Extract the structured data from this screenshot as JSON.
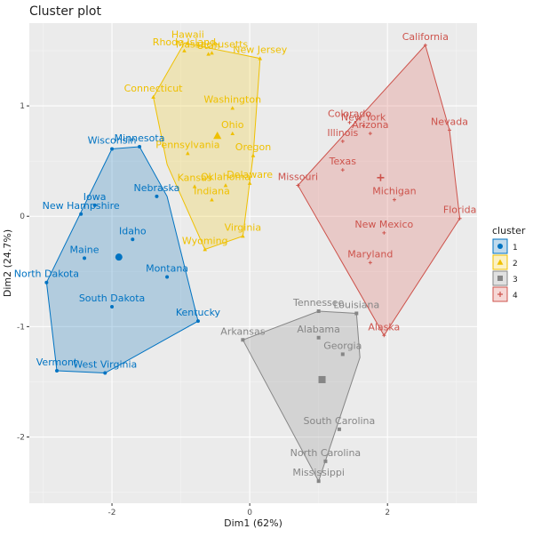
{
  "chart_data": {
    "type": "scatter",
    "title": "Cluster plot",
    "xlabel": "Dim1 (62%)",
    "ylabel": "Dim2 (24.7%)",
    "xlim": [
      -3.2,
      3.3
    ],
    "ylim": [
      -2.6,
      1.75
    ],
    "x_ticks": [
      {
        "value": -2,
        "label": "-2"
      },
      {
        "value": 0,
        "label": "0"
      },
      {
        "value": 2,
        "label": "2"
      }
    ],
    "y_ticks": [
      {
        "value": -2,
        "label": "-2"
      },
      {
        "value": -1,
        "label": "-1"
      },
      {
        "value": 0,
        "label": "0"
      },
      {
        "value": 1,
        "label": "1"
      }
    ],
    "grid": true,
    "legend": {
      "title": "cluster",
      "position": "right"
    },
    "clusters": [
      {
        "name": "1",
        "color": "#0073C2",
        "fill": "#2E86C1",
        "shape": "circle",
        "center": [
          -1.9,
          -0.37
        ],
        "hull": [
          [
            -2.0,
            0.61
          ],
          [
            -1.6,
            0.63
          ],
          [
            -1.2,
            0.18
          ],
          [
            -0.75,
            -0.95
          ],
          [
            -2.1,
            -1.42
          ],
          [
            -2.8,
            -1.4
          ],
          [
            -2.95,
            -0.6
          ]
        ],
        "points": [
          {
            "label": "Minnesota",
            "x": -1.6,
            "y": 0.63
          },
          {
            "label": "Wisconsin",
            "x": -2.0,
            "y": 0.61
          },
          {
            "label": "Iowa",
            "x": -2.25,
            "y": 0.1
          },
          {
            "label": "New Hampshire",
            "x": -2.45,
            "y": 0.02
          },
          {
            "label": "Nebraska",
            "x": -1.35,
            "y": 0.18
          },
          {
            "label": "Idaho",
            "x": -1.7,
            "y": -0.21
          },
          {
            "label": "Maine",
            "x": -2.4,
            "y": -0.38
          },
          {
            "label": "North Dakota",
            "x": -2.95,
            "y": -0.6
          },
          {
            "label": "Montana",
            "x": -1.2,
            "y": -0.55
          },
          {
            "label": "South Dakota",
            "x": -2.0,
            "y": -0.82
          },
          {
            "label": "Kentucky",
            "x": -0.75,
            "y": -0.95
          },
          {
            "label": "Vermont",
            "x": -2.8,
            "y": -1.4
          },
          {
            "label": "West Virginia",
            "x": -2.1,
            "y": -1.42
          }
        ]
      },
      {
        "name": "2",
        "color": "#EFC000",
        "fill": "#F2D13A",
        "shape": "triangle",
        "center": [
          -0.47,
          0.73
        ],
        "hull": [
          [
            -1.4,
            1.08
          ],
          [
            -0.95,
            1.57
          ],
          [
            0.15,
            1.43
          ],
          [
            0.05,
            0.55
          ],
          [
            -0.1,
            -0.18
          ],
          [
            -0.65,
            -0.3
          ],
          [
            -1.2,
            0.47
          ]
        ],
        "points": [
          {
            "label": "Hawaii",
            "x": -0.9,
            "y": 1.57
          },
          {
            "label": "Rhode Island",
            "x": -0.95,
            "y": 1.5
          },
          {
            "label": "Massachusetts",
            "x": -0.55,
            "y": 1.48
          },
          {
            "label": "Utah",
            "x": -0.6,
            "y": 1.47
          },
          {
            "label": "New Jersey",
            "x": 0.15,
            "y": 1.43
          },
          {
            "label": "Connecticut",
            "x": -1.4,
            "y": 1.08
          },
          {
            "label": "Washington",
            "x": -0.25,
            "y": 0.98
          },
          {
            "label": "Ohio",
            "x": -0.25,
            "y": 0.75
          },
          {
            "label": "Oregon",
            "x": 0.05,
            "y": 0.55
          },
          {
            "label": "Pennsylvania",
            "x": -0.9,
            "y": 0.57
          },
          {
            "label": "Delaware",
            "x": 0.0,
            "y": 0.3
          },
          {
            "label": "Kansas",
            "x": -0.8,
            "y": 0.27
          },
          {
            "label": "Oklahoma",
            "x": -0.35,
            "y": 0.28
          },
          {
            "label": "Indiana",
            "x": -0.55,
            "y": 0.15
          },
          {
            "label": "Virginia",
            "x": -0.1,
            "y": -0.18
          },
          {
            "label": "Wyoming",
            "x": -0.65,
            "y": -0.3
          }
        ]
      },
      {
        "name": "3",
        "color": "#868686",
        "fill": "#9A9A9A",
        "shape": "square",
        "center": [
          1.05,
          -1.48
        ],
        "hull": [
          [
            -0.1,
            -1.12
          ],
          [
            1.0,
            -0.86
          ],
          [
            1.55,
            -0.88
          ],
          [
            1.6,
            -1.28
          ],
          [
            1.0,
            -2.4
          ]
        ],
        "points": [
          {
            "label": "Tennessee",
            "x": 1.0,
            "y": -0.86
          },
          {
            "label": "Louisiana",
            "x": 1.55,
            "y": -0.88
          },
          {
            "label": "Arkansas",
            "x": -0.1,
            "y": -1.12
          },
          {
            "label": "Alabama",
            "x": 1.0,
            "y": -1.1
          },
          {
            "label": "Georgia",
            "x": 1.35,
            "y": -1.25
          },
          {
            "label": "South Carolina",
            "x": 1.3,
            "y": -1.93
          },
          {
            "label": "North Carolina",
            "x": 1.1,
            "y": -2.22
          },
          {
            "label": "Mississippi",
            "x": 1.0,
            "y": -2.4
          }
        ]
      },
      {
        "name": "4",
        "color": "#CD534C",
        "fill": "#E07A74",
        "shape": "cross",
        "center": [
          1.9,
          0.35
        ],
        "hull": [
          [
            0.7,
            0.28
          ],
          [
            2.55,
            1.55
          ],
          [
            2.9,
            0.78
          ],
          [
            3.05,
            -0.02
          ],
          [
            1.95,
            -1.08
          ]
        ],
        "points": [
          {
            "label": "California",
            "x": 2.55,
            "y": 1.55
          },
          {
            "label": "Colorado",
            "x": 1.45,
            "y": 0.85
          },
          {
            "label": "New York",
            "x": 1.65,
            "y": 0.82
          },
          {
            "label": "Nevada",
            "x": 2.9,
            "y": 0.78
          },
          {
            "label": "Illinois",
            "x": 1.35,
            "y": 0.68
          },
          {
            "label": "Arizona",
            "x": 1.75,
            "y": 0.75
          },
          {
            "label": "Texas",
            "x": 1.35,
            "y": 0.42
          },
          {
            "label": "Michigan",
            "x": 2.1,
            "y": 0.15
          },
          {
            "label": "Missouri",
            "x": 0.7,
            "y": 0.28
          },
          {
            "label": "Florida",
            "x": 3.05,
            "y": -0.02
          },
          {
            "label": "New Mexico",
            "x": 1.95,
            "y": -0.15
          },
          {
            "label": "Maryland",
            "x": 1.75,
            "y": -0.42
          },
          {
            "label": "Alaska",
            "x": 1.95,
            "y": -1.08
          }
        ]
      }
    ]
  }
}
